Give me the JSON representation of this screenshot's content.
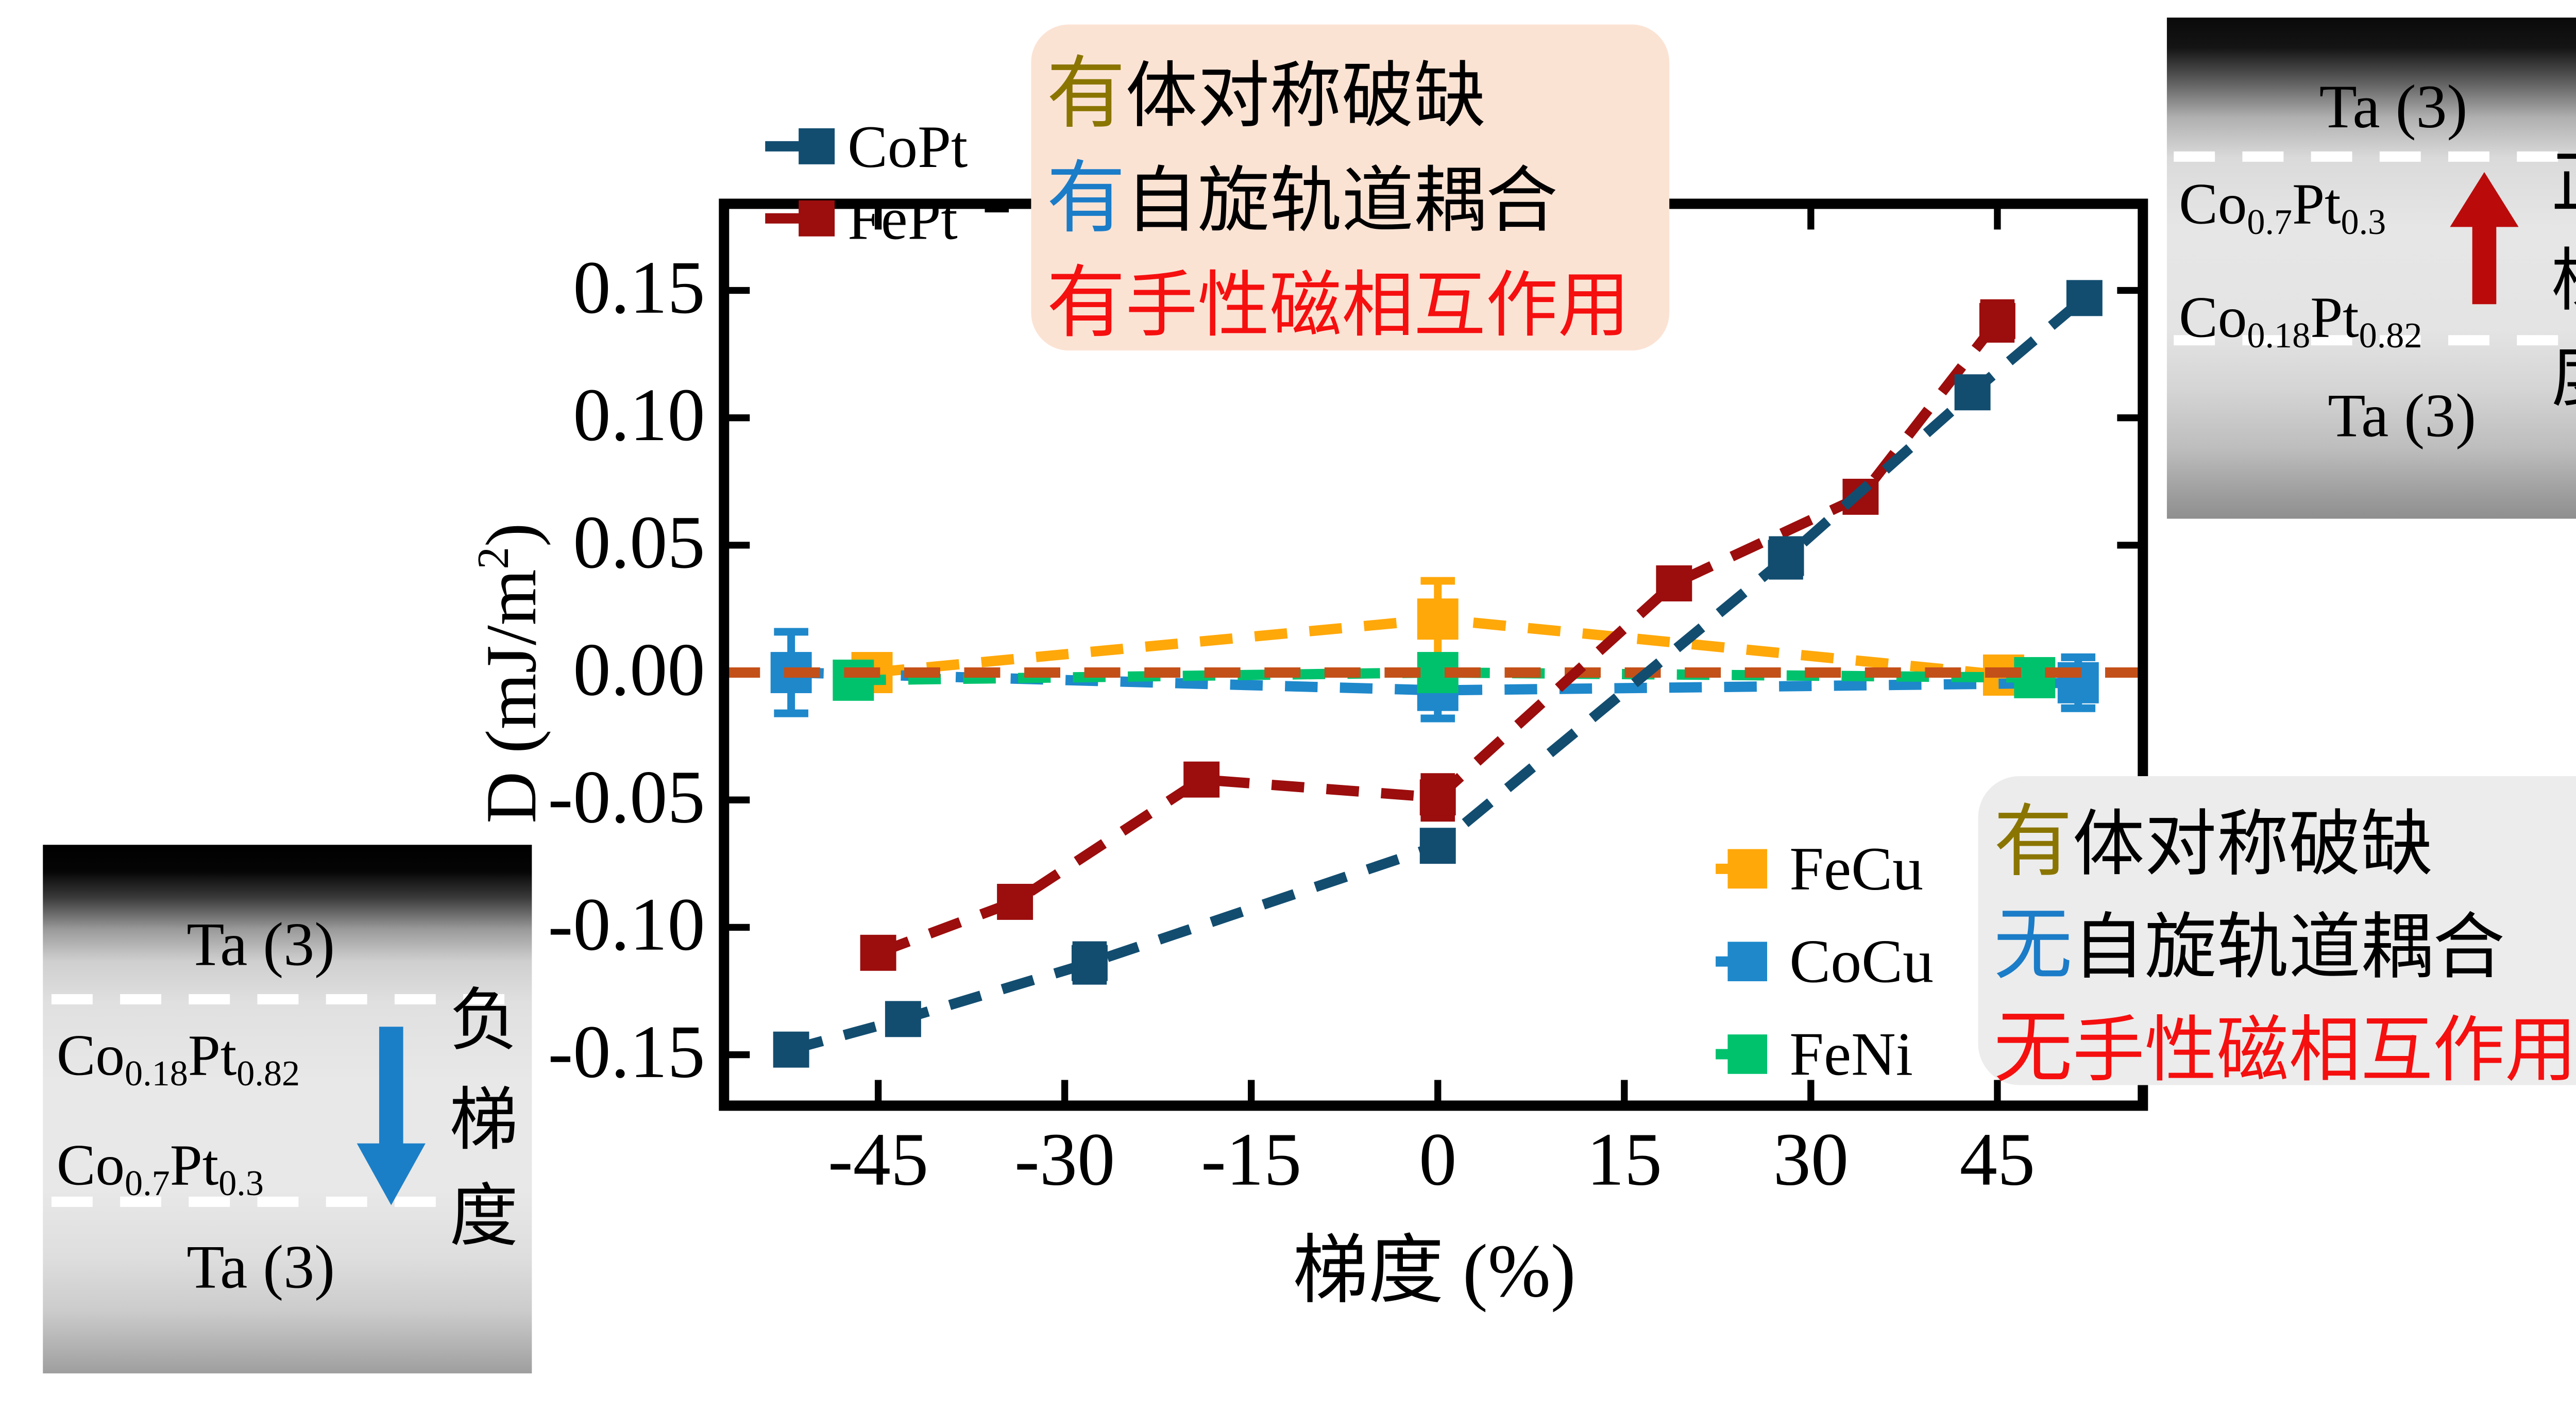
{
  "chart_data": {
    "type": "scatter",
    "title": "",
    "xlabel": "梯度 (%)",
    "ylabel_parts": [
      {
        "t": "D (mJ/m"
      },
      {
        "t": "2",
        "sup": true
      },
      {
        "t": ")"
      }
    ],
    "xlim": [
      -57.4,
      56.7
    ],
    "ylim": [
      -0.17,
      0.184
    ],
    "xticks": [
      -45,
      -30,
      -15,
      0,
      15,
      30,
      45
    ],
    "xticklabels": [
      "-45",
      "-30",
      "-15",
      "0",
      "15",
      "30",
      "45"
    ],
    "yticks": [
      0.15,
      0.1,
      0.05,
      0.0,
      -0.05,
      -0.1,
      -0.15
    ],
    "yticklabels": [
      "0.15",
      "0.10",
      "0.05",
      "0.00",
      "-0.05",
      "-0.10",
      "-0.15"
    ],
    "grid": false,
    "refline": {
      "y": 0,
      "color": "#c35018",
      "draw_after_series": "FeNi"
    },
    "series": [
      {
        "name": "FeCu",
        "color": "#ffa80a",
        "marker_size": 24,
        "points": [
          [
            -45.5,
            0.0,
            0
          ],
          [
            0,
            0.021,
            0.015
          ],
          [
            45.5,
            -0.001,
            0
          ]
        ]
      },
      {
        "name": "CoCu",
        "color": "#1e88cb",
        "marker_size": 24,
        "points": [
          [
            -52,
            0.0,
            0.016
          ],
          [
            0,
            -0.007,
            0.011
          ],
          [
            51.5,
            -0.004,
            0.01
          ]
        ]
      },
      {
        "name": "FeNi",
        "color": "#00c26d",
        "marker_size": 24,
        "points": [
          [
            -47,
            -0.003,
            0
          ],
          [
            0,
            0.0,
            0
          ],
          [
            48,
            -0.002,
            0
          ]
        ]
      },
      {
        "name": "FePt",
        "color": "#9c0d0d",
        "marker_size": 21,
        "points": [
          [
            -45,
            -0.11,
            0
          ],
          [
            -34,
            -0.09,
            0
          ],
          [
            -19,
            -0.042,
            0
          ],
          [
            0,
            -0.049,
            0.008
          ],
          [
            19,
            0.035,
            0
          ],
          [
            34,
            0.069,
            0
          ],
          [
            45,
            0.138,
            0.007
          ]
        ]
      },
      {
        "name": "CoPt",
        "color": "#124d70",
        "marker_size": 21,
        "points": [
          [
            -52,
            -0.148,
            0
          ],
          [
            -43,
            -0.136,
            0
          ],
          [
            -28,
            -0.114,
            0.007
          ],
          [
            0,
            -0.068,
            0
          ],
          [
            28,
            0.045,
            0.007
          ],
          [
            43,
            0.11,
            0
          ],
          [
            52,
            0.147,
            0
          ]
        ]
      }
    ]
  },
  "legend_main": {
    "items": [
      {
        "label": "CoPt",
        "color": "#124d70"
      },
      {
        "label": "FePt",
        "color": "#9c0d0d"
      }
    ]
  },
  "legend_secondary": {
    "items": [
      {
        "label": "FeCu",
        "color": "#ffa80a"
      },
      {
        "label": "CoCu",
        "color": "#1e88cb"
      },
      {
        "label": "FeNi",
        "color": "#00c26d"
      }
    ]
  },
  "annotations": {
    "box_top": {
      "bg": "#fbe3d4",
      "lines": [
        {
          "lead": "有",
          "lead_color": "#8a7500",
          "rest": "体对称破缺",
          "rest_color": "#000000"
        },
        {
          "lead": "有",
          "lead_color": "#1b7cc8",
          "rest": "自旋轨道耦合",
          "rest_color": "#000000"
        },
        {
          "lead": "有",
          "lead_color": "#f50f0f",
          "rest": "手性磁相互作用",
          "rest_color": "#f50f0f"
        }
      ]
    },
    "box_bottom": {
      "bg": "#ececec",
      "lines": [
        {
          "lead": "有",
          "lead_color": "#8a7500",
          "rest": "体对称破缺",
          "rest_color": "#000000"
        },
        {
          "lead": "无",
          "lead_color": "#1b7cc8",
          "rest": "自旋轨道耦合",
          "rest_color": "#000000"
        },
        {
          "lead": "无",
          "lead_color": "#f50f0f",
          "rest": "手性磁相互作用",
          "rest_color": "#f50f0f"
        }
      ]
    }
  },
  "insets": {
    "negative": {
      "layer_top": "Ta (3)",
      "formula_upper": [
        {
          "t": "Co"
        },
        {
          "t": "0.18",
          "sub": true
        },
        {
          "t": "Pt"
        },
        {
          "t": "0.82",
          "sub": true
        }
      ],
      "formula_lower": [
        {
          "t": "Co"
        },
        {
          "t": "0.7",
          "sub": true
        },
        {
          "t": "Pt"
        },
        {
          "t": "0.3",
          "sub": true
        }
      ],
      "layer_bottom": "Ta (3)",
      "arrow_color": "#1b7fc8",
      "arrow_direction": "down",
      "label": "负梯度",
      "label_color": "#1b7fc8"
    },
    "positive": {
      "layer_top": "Ta (3)",
      "formula_upper": [
        {
          "t": "Co"
        },
        {
          "t": "0.7",
          "sub": true
        },
        {
          "t": "Pt"
        },
        {
          "t": "0.3",
          "sub": true
        }
      ],
      "formula_lower": [
        {
          "t": "Co"
        },
        {
          "t": "0.18",
          "sub": true
        },
        {
          "t": "Pt"
        },
        {
          "t": "0.82",
          "sub": true
        }
      ],
      "layer_bottom": "Ta (3)",
      "arrow_color": "#bb0a0a",
      "arrow_direction": "up",
      "label": "正梯度",
      "label_color": "#bb0a0a"
    }
  }
}
